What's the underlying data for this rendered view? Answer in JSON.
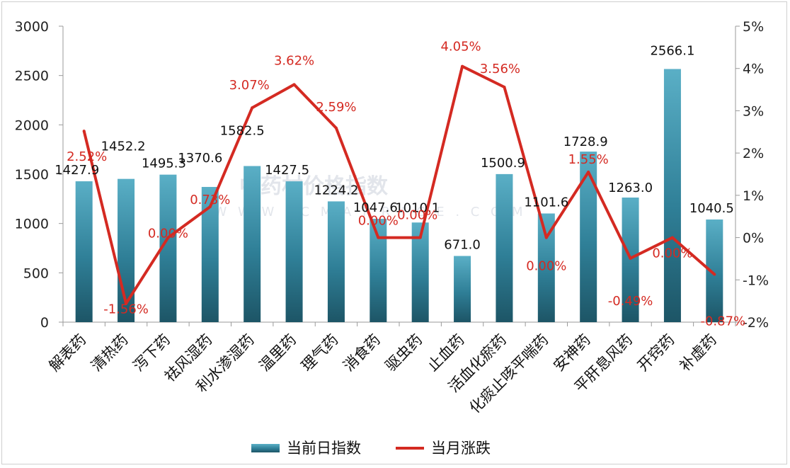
{
  "chart_data": {
    "type": "bar",
    "categories": [
      "解表药",
      "清热药",
      "泻下药",
      "祛风湿药",
      "利水渗湿药",
      "温里药",
      "理气药",
      "消食药",
      "驱虫药",
      "止血药",
      "活血化瘀药",
      "化痰止咳平喘药",
      "安神药",
      "平肝息风药",
      "开窍药",
      "补虚药"
    ],
    "series": [
      {
        "name": "当前日指数",
        "type": "bar",
        "axis": "left",
        "values": [
          1427.9,
          1452.2,
          1495.3,
          1370.6,
          1582.5,
          1427.5,
          1224.2,
          1047.6,
          1010.1,
          671.0,
          1500.9,
          1101.6,
          1728.9,
          1263.0,
          2566.1,
          1040.5
        ],
        "labels": [
          "1427.9",
          "1452.2",
          "1495.3",
          "1370.6",
          "1582.5",
          "1427.5",
          "1224.2",
          "1047.6",
          "1010.1",
          "671.0",
          "1500.9",
          "1101.6",
          "1728.9",
          "1263.0",
          "2566.1",
          "1040.5"
        ],
        "color": "#2f7f97"
      },
      {
        "name": "当月涨跌",
        "type": "line",
        "axis": "right",
        "values": [
          2.52,
          -1.56,
          0.0,
          0.73,
          3.07,
          3.62,
          2.59,
          0.0,
          0.0,
          4.05,
          3.56,
          0.0,
          1.55,
          -0.49,
          0.0,
          -0.87
        ],
        "labels": [
          "2.52%",
          "-1.56%",
          "0.00%",
          "0.73%",
          "3.07%",
          "3.62%",
          "2.59%",
          "0.00%",
          "0.00%",
          "4.05%",
          "3.56%",
          "0.00%",
          "1.55%",
          "-0.49%",
          "0.00%",
          "-0.87%"
        ],
        "color": "#d42a22"
      }
    ],
    "y_left": {
      "min": 0,
      "max": 3000,
      "ticks": [
        "0",
        "500",
        "1000",
        "1500",
        "2000",
        "2500",
        "3000"
      ]
    },
    "y_right": {
      "min": -2,
      "max": 5,
      "ticks": [
        "-2%",
        "-1%",
        "0%",
        "1%",
        "2%",
        "3%",
        "4%",
        "5%"
      ]
    },
    "legend_position": "bottom",
    "grid": false,
    "watermark": {
      "text": "中药材价格指数",
      "sub": "W W W . C M A P R I C E . C O M"
    }
  }
}
